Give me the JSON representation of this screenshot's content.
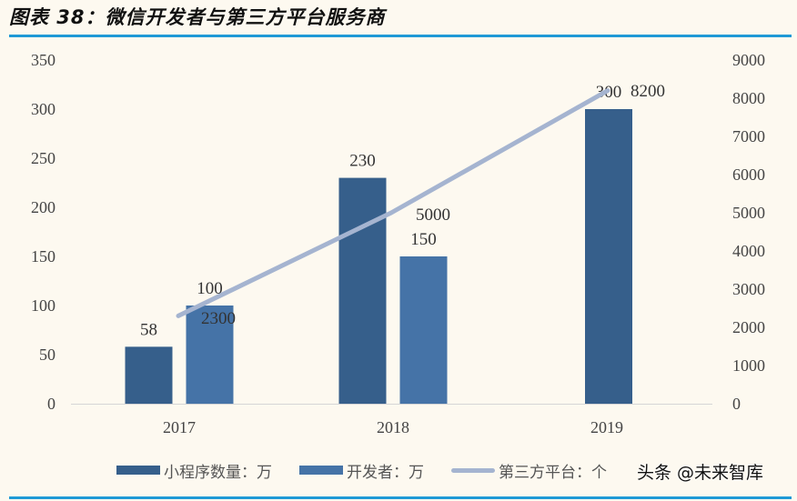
{
  "header": {
    "title": "图表 38：微信开发者与第三方平台服务商"
  },
  "chart_data": {
    "type": "bar",
    "title": "图表 38：微信开发者与第三方平台服务商",
    "categories": [
      "2017",
      "2018",
      "2019"
    ],
    "series": [
      {
        "name": "小程序数量：万",
        "type": "bar",
        "axis": "left",
        "color": "#365f8b",
        "values": [
          58,
          230,
          300
        ]
      },
      {
        "name": "开发者：万",
        "type": "bar",
        "axis": "left",
        "color": "#4573a7",
        "values": [
          100,
          150,
          null
        ]
      },
      {
        "name": "第三方平台：个",
        "type": "line",
        "axis": "right",
        "color": "#a5b4d0",
        "values": [
          2300,
          5000,
          8200
        ]
      }
    ],
    "data_labels": {
      "小程序数量：万": [
        "58",
        "230",
        "300"
      ],
      "开发者：万": [
        "100",
        "150",
        ""
      ],
      "第三方平台：个": [
        "2300",
        "5000",
        "8200"
      ]
    },
    "xlabel": "",
    "ylabel_left": "",
    "ylabel_right": "",
    "ylim_left": [
      0,
      350
    ],
    "yticks_left": [
      "0",
      "50",
      "100",
      "150",
      "200",
      "250",
      "300",
      "350"
    ],
    "ylim_right": [
      0,
      9000
    ],
    "yticks_right": [
      "0",
      "1000",
      "2000",
      "3000",
      "4000",
      "5000",
      "6000",
      "7000",
      "8000",
      "9000"
    ],
    "grid": false,
    "legend_position": "bottom"
  },
  "legend": {
    "items": [
      {
        "label": "小程序数量：万",
        "color": "#365f8b",
        "kind": "bar"
      },
      {
        "label": "开发者：万",
        "color": "#4573a7",
        "kind": "bar"
      },
      {
        "label": "第三方平台：个",
        "color": "#a5b4d0",
        "kind": "line"
      }
    ]
  },
  "watermark": {
    "text": "头条 @未来智库"
  }
}
